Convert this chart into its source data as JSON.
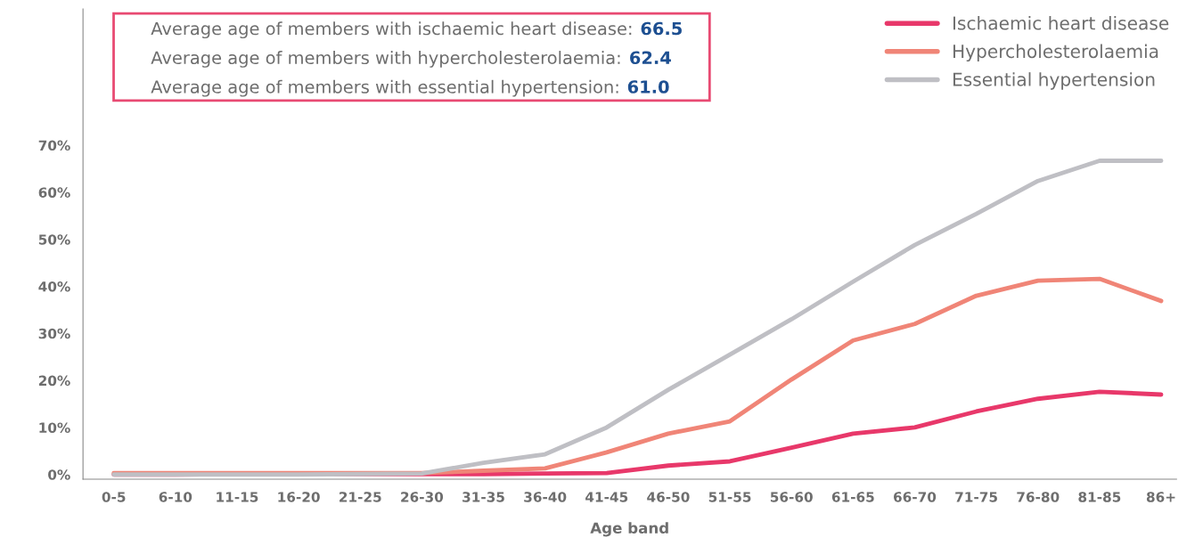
{
  "chart_data": {
    "type": "line",
    "xlabel": "Age band",
    "categories": [
      "0-5",
      "6-10",
      "11-15",
      "16-20",
      "21-25",
      "26-30",
      "31-35",
      "36-40",
      "41-45",
      "46-50",
      "51-55",
      "56-60",
      "61-65",
      "66-70",
      "71-75",
      "76-80",
      "81-85",
      "86+"
    ],
    "series": [
      {
        "name": "Ischaemic heart disease",
        "color": "#e8386a",
        "values": [
          0,
          0,
          0.1,
          0.1,
          0.1,
          0.1,
          0.1,
          0.2,
          0.3,
          1.9,
          2.8,
          5.7,
          8.7,
          10,
          13.4,
          16.1,
          17.6,
          17.0
        ]
      },
      {
        "name": "Hypercholesterolaemia",
        "color": "#f08577",
        "values": [
          0.3,
          0.3,
          0.3,
          0.3,
          0.3,
          0.3,
          0.8,
          1.3,
          4.7,
          8.7,
          11.3,
          20.2,
          28.5,
          32,
          38,
          41.2,
          41.6,
          36.9
        ]
      },
      {
        "name": "Essential hypertension",
        "color": "#bfbfc4",
        "values": [
          0,
          0,
          0,
          0,
          0.1,
          0.2,
          2.5,
          4.3,
          10,
          18,
          25.5,
          33,
          41,
          48.8,
          55.4,
          62.4,
          66.7,
          66.7
        ]
      }
    ],
    "ylim": [
      -1,
      99
    ],
    "yticks": [
      {
        "value": 0,
        "label": "0%"
      },
      {
        "value": 10,
        "label": "10%"
      },
      {
        "value": 20,
        "label": "20%"
      },
      {
        "value": 30,
        "label": "30%"
      },
      {
        "value": 40,
        "label": "40%"
      },
      {
        "value": 50,
        "label": "50%"
      },
      {
        "value": 60,
        "label": "60%"
      },
      {
        "value": 70,
        "label": "70%"
      }
    ],
    "annotations": [
      "Average age of members with ischaemic heart disease: 66.5",
      "Average age of members with hypercholesterolaemia: 62.4",
      "Average age of members with essential hypertension: 61.0"
    ],
    "legend": "top right",
    "grid": false
  }
}
